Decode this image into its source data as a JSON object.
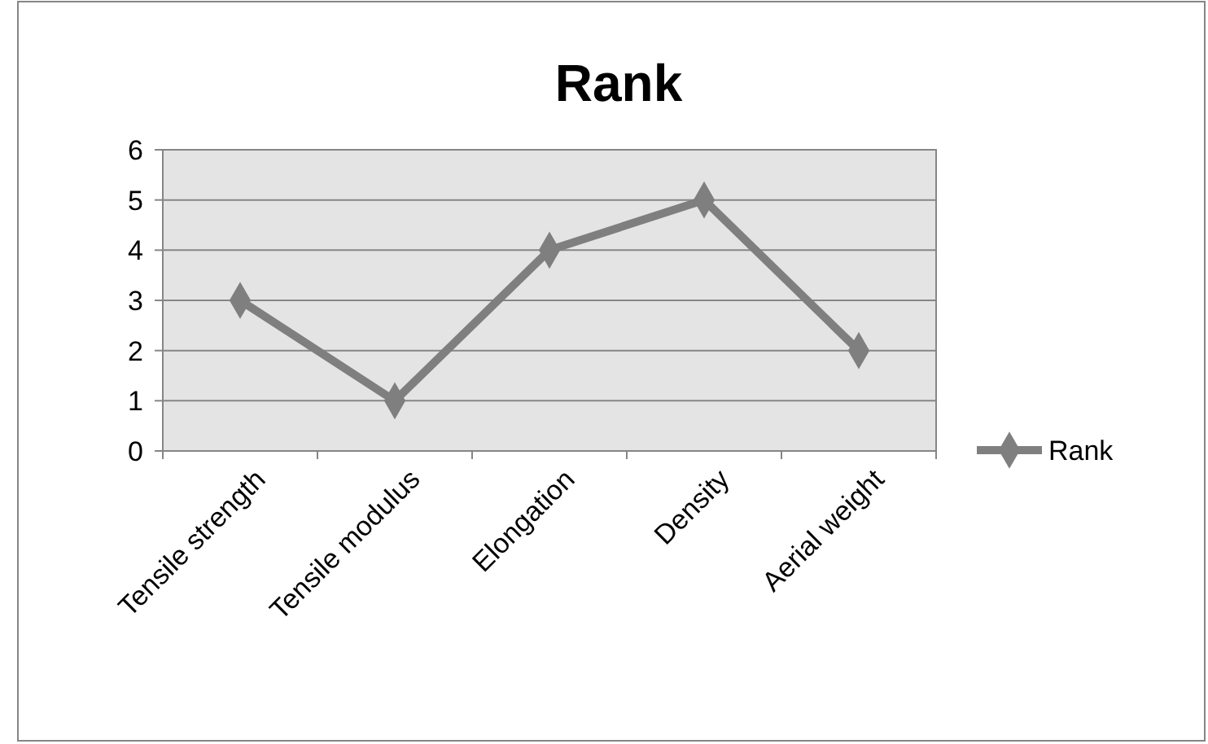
{
  "chart_data": {
    "type": "line",
    "title": "Rank",
    "categories": [
      "Tensile strength",
      "Tensile modulus",
      "Elongation",
      "Density",
      "Aerial weight"
    ],
    "series": [
      {
        "name": "Rank",
        "color": "#7f7f7f",
        "values": [
          3,
          1,
          4,
          5,
          2
        ]
      }
    ],
    "ylim": [
      0,
      6
    ],
    "yticks": [
      0,
      1,
      2,
      3,
      4,
      5,
      6
    ],
    "grid": "y",
    "legend": "right",
    "marker": "diamond",
    "line_style": "solid"
  }
}
